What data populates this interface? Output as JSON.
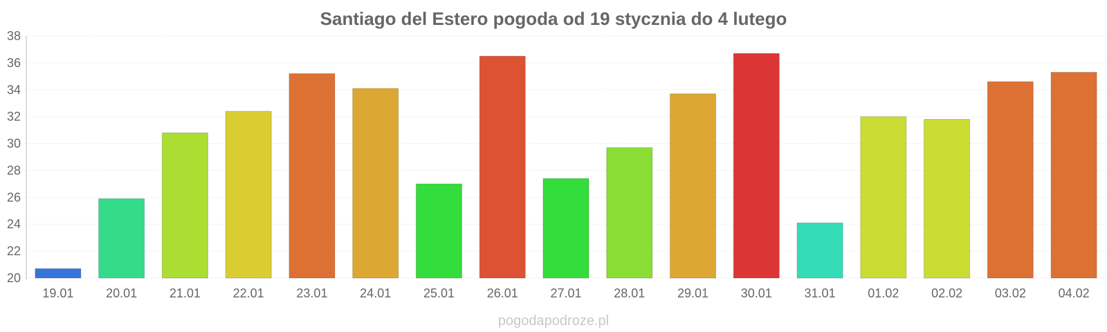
{
  "chart_data": {
    "type": "bar",
    "title": "Santiago del Estero pogoda od 19 stycznia do 4 lutego",
    "xlabel": "",
    "ylabel": "",
    "categories": [
      "19.01",
      "20.01",
      "21.01",
      "22.01",
      "23.01",
      "24.01",
      "25.01",
      "26.01",
      "27.01",
      "28.01",
      "29.01",
      "30.01",
      "31.01",
      "01.02",
      "02.02",
      "03.02",
      "04.02"
    ],
    "values": [
      20.7,
      25.9,
      30.8,
      32.4,
      35.2,
      34.1,
      27.0,
      36.5,
      27.4,
      29.7,
      33.7,
      36.7,
      24.1,
      32.0,
      31.8,
      34.6,
      35.3
    ],
    "colors": [
      "#3575db",
      "#34dc8a",
      "#acdd33",
      "#dacd32",
      "#dd7133",
      "#dca833",
      "#33dd3b",
      "#dd5233",
      "#33dd3b",
      "#89dd34",
      "#dca833",
      "#dc3535",
      "#34dcb8",
      "#cbdd33",
      "#cbdd33",
      "#dd7133",
      "#dd7133"
    ],
    "ylim": [
      20,
      38
    ],
    "yticks": [
      20,
      22,
      24,
      26,
      28,
      30,
      32,
      34,
      36,
      38
    ],
    "grid": true,
    "legend": "none"
  },
  "watermark": "pogodapodroze.pl"
}
